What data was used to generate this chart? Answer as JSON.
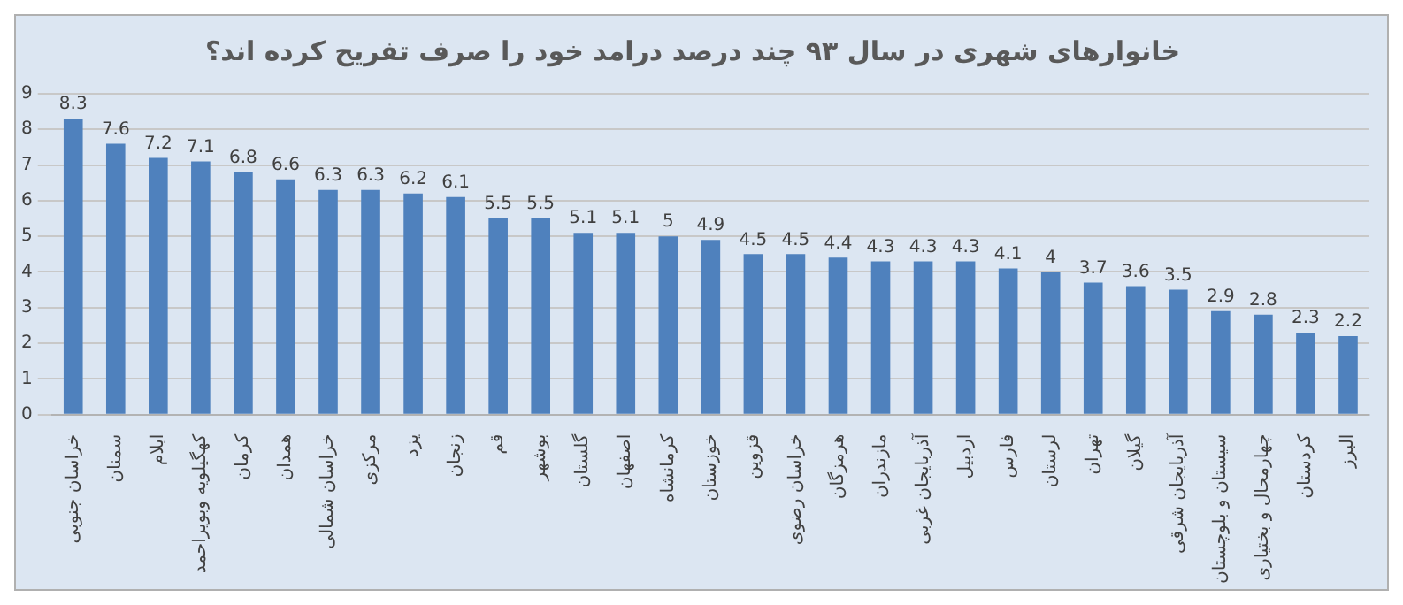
{
  "chart_data": {
    "type": "bar",
    "title": "خانوارهای شهری در سال ۹۳ چند درصد درامد خود را صرف تفریح کرده اند؟",
    "categories": [
      "خراسان جنوبی",
      "سمنان",
      "ایلام",
      "کهگیلویه وبویراحمد",
      "کرمان",
      "همدان",
      "خراسان شمالی",
      "مرکزی",
      "یزد",
      "زنجان",
      "قم",
      "بوشهر",
      "گلستان",
      "اصفهان",
      "کرمانشاه",
      "خوزستان",
      "قزوین",
      "خراسان رضوی",
      "هرمزگان",
      "مازندران",
      "آذربایجان غربی",
      "اردبیل",
      "فارس",
      "لرستان",
      "تهران",
      "گیلان",
      "آذربایجان شرقی",
      "سیستان و بلوچستان",
      "چهارمحال و بختیاری",
      "کردستان",
      "البرز"
    ],
    "values": [
      8.3,
      7.6,
      7.2,
      7.1,
      6.8,
      6.6,
      6.3,
      6.3,
      6.2,
      6.1,
      5.5,
      5.5,
      5.1,
      5.1,
      5,
      4.9,
      4.5,
      4.5,
      4.4,
      4.3,
      4.3,
      4.3,
      4.1,
      4,
      3.7,
      3.6,
      3.5,
      2.9,
      2.8,
      2.3,
      2.2
    ],
    "color": "#4f81bd",
    "ylim": [
      0,
      9
    ],
    "yticks": [
      0,
      1,
      2,
      3,
      4,
      5,
      6,
      7,
      8,
      9
    ],
    "grid": "y",
    "data_labels": true,
    "legend": false
  }
}
